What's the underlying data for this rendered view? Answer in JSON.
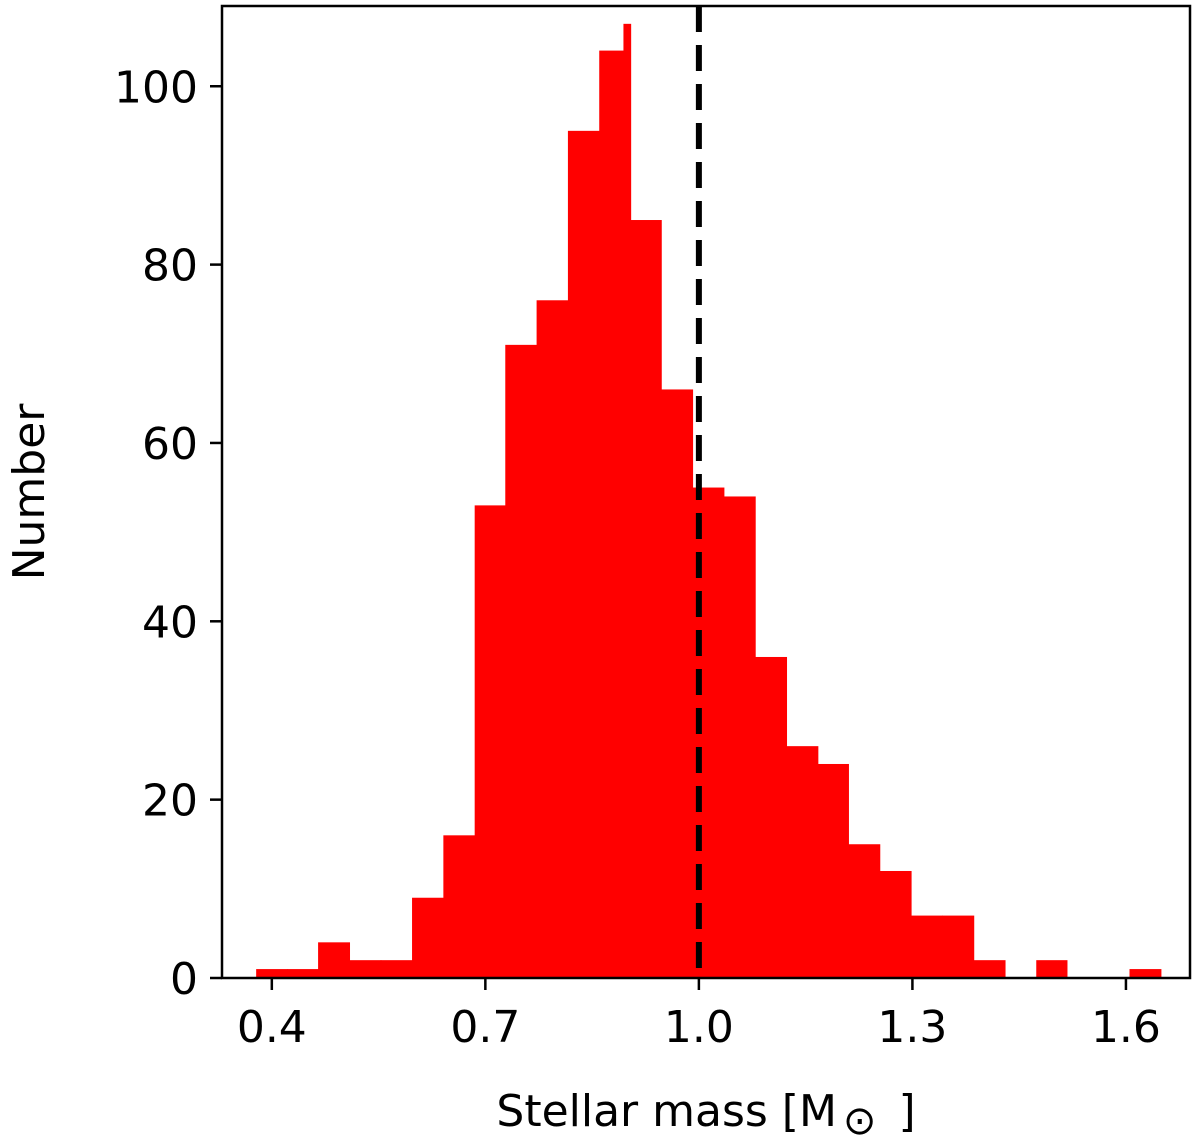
{
  "chart_data": {
    "type": "bar",
    "histogram": true,
    "xlabel": "Stellar mass [M",
    "xlabel_unit_symbol": "⊙",
    "xlabel_close": "]",
    "ylabel": "Number",
    "xlim": [
      0.33,
      1.69
    ],
    "ylim": [
      0,
      109
    ],
    "xticks": [
      0.4,
      0.7,
      1.0,
      1.3,
      1.6
    ],
    "xtick_labels": [
      "0.4",
      "0.7",
      "1.0",
      "1.3",
      "1.6"
    ],
    "yticks": [
      0,
      20,
      40,
      60,
      80,
      100
    ],
    "ytick_labels": [
      "0",
      "20",
      "40",
      "60",
      "80",
      "100"
    ],
    "grid": false,
    "bar_color": "#ff0000",
    "bins": [
      {
        "x0": 0.378,
        "x1": 0.422,
        "count": 1
      },
      {
        "x0": 0.422,
        "x1": 0.465,
        "count": 1
      },
      {
        "x0": 0.465,
        "x1": 0.509,
        "count": 4
      },
      {
        "x0": 0.509,
        "x1": 0.553,
        "count": 2
      },
      {
        "x0": 0.553,
        "x1": 0.597,
        "count": 2
      },
      {
        "x0": 0.597,
        "x1": 0.641,
        "count": 9
      },
      {
        "x0": 0.641,
        "x1": 0.685,
        "count": 16
      },
      {
        "x0": 0.685,
        "x1": 0.728,
        "count": 53
      },
      {
        "x0": 0.728,
        "x1": 0.772,
        "count": 71
      },
      {
        "x0": 0.772,
        "x1": 0.816,
        "count": 76
      },
      {
        "x0": 0.816,
        "x1": 0.86,
        "count": 95
      },
      {
        "x0": 0.86,
        "x1": 0.894,
        "count": 104
      },
      {
        "x0": 0.894,
        "x1": 0.904,
        "count": 107
      },
      {
        "x0": 0.904,
        "x1": 0.947,
        "count": 85
      },
      {
        "x0": 0.947,
        "x1": 0.991,
        "count": 66
      },
      {
        "x0": 0.991,
        "x1": 1.035,
        "count": 55
      },
      {
        "x0": 1.035,
        "x1": 1.079,
        "count": 54
      },
      {
        "x0": 1.079,
        "x1": 1.123,
        "count": 36
      },
      {
        "x0": 1.123,
        "x1": 1.167,
        "count": 26
      },
      {
        "x0": 1.167,
        "x1": 1.21,
        "count": 24
      },
      {
        "x0": 1.21,
        "x1": 1.254,
        "count": 15
      },
      {
        "x0": 1.254,
        "x1": 1.298,
        "count": 12
      },
      {
        "x0": 1.298,
        "x1": 1.342,
        "count": 7
      },
      {
        "x0": 1.342,
        "x1": 1.386,
        "count": 7
      },
      {
        "x0": 1.386,
        "x1": 1.43,
        "count": 2
      },
      {
        "x0": 1.43,
        "x1": 1.474,
        "count": 0
      },
      {
        "x0": 1.474,
        "x1": 1.517,
        "count": 2
      },
      {
        "x0": 1.517,
        "x1": 1.561,
        "count": 0
      },
      {
        "x0": 1.561,
        "x1": 1.605,
        "count": 0
      },
      {
        "x0": 1.605,
        "x1": 1.649,
        "count": 1
      }
    ],
    "reference_lines": [
      {
        "x": 1.0,
        "style": "dashed",
        "color": "#000000"
      }
    ]
  }
}
